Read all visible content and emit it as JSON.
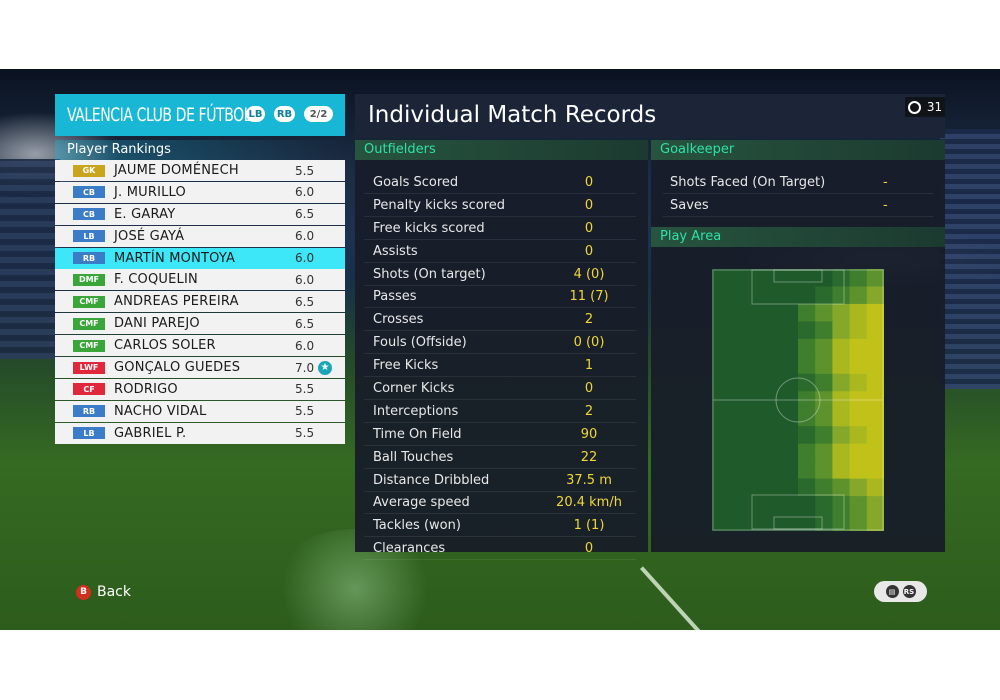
{
  "team": {
    "name": "VALENCIA CLUB DE FÚTBOL",
    "btn_lb": "LB",
    "btn_rb": "RB",
    "page": "2/2"
  },
  "rankings_label": "Player Rankings",
  "players": [
    {
      "pos": "GK",
      "pos_color": "#c8a51c",
      "name": "JAUME DOMÉNECH",
      "rating": "5.5"
    },
    {
      "pos": "CB",
      "pos_color": "#3a7cc8",
      "name": "J. MURILLO",
      "rating": "6.0"
    },
    {
      "pos": "CB",
      "pos_color": "#3a7cc8",
      "name": "E. GARAY",
      "rating": "6.5"
    },
    {
      "pos": "LB",
      "pos_color": "#3a7cc8",
      "name": "JOSÉ GAYÁ",
      "rating": "6.0"
    },
    {
      "pos": "RB",
      "pos_color": "#3a7cc8",
      "name": "MARTÍN MONTOYA",
      "rating": "6.0",
      "selected": true
    },
    {
      "pos": "DMF",
      "pos_color": "#3aa63a",
      "name": "F. COQUELIN",
      "rating": "6.0"
    },
    {
      "pos": "CMF",
      "pos_color": "#3aa63a",
      "name": "ANDREAS PEREIRA",
      "rating": "6.5"
    },
    {
      "pos": "CMF",
      "pos_color": "#3aa63a",
      "name": "DANI PAREJO",
      "rating": "6.5"
    },
    {
      "pos": "CMF",
      "pos_color": "#3aa63a",
      "name": "CARLOS SOLER",
      "rating": "6.0"
    },
    {
      "pos": "LWF",
      "pos_color": "#e0283c",
      "name": "GONÇALO GUEDES",
      "rating": "7.0",
      "star": true
    },
    {
      "pos": "CF",
      "pos_color": "#e0283c",
      "name": "RODRIGO",
      "rating": "5.5"
    },
    {
      "pos": "RB",
      "pos_color": "#3a7cc8",
      "name": "NACHO VIDAL",
      "rating": "5.5"
    },
    {
      "pos": "LB",
      "pos_color": "#3a7cc8",
      "name": "GABRIEL P.",
      "rating": "5.5"
    }
  ],
  "title": "Individual Match Records",
  "timer": "31",
  "outfielders_label": "Outfielders",
  "stats": [
    {
      "label": "Goals Scored",
      "value": "0"
    },
    {
      "label": "Penalty kicks scored",
      "value": "0"
    },
    {
      "label": "Free kicks scored",
      "value": "0"
    },
    {
      "label": "Assists",
      "value": "0"
    },
    {
      "label": "Shots (On target)",
      "value": "4 (0)"
    },
    {
      "label": "Passes",
      "value": "11 (7)"
    },
    {
      "label": "Crosses",
      "value": "2"
    },
    {
      "label": "Fouls (Offside)",
      "value": "0 (0)"
    },
    {
      "label": "Free Kicks",
      "value": "1"
    },
    {
      "label": "Corner Kicks",
      "value": "0"
    },
    {
      "label": "Interceptions",
      "value": "2"
    },
    {
      "label": "Time On Field",
      "value": "90"
    },
    {
      "label": "Ball Touches",
      "value": "22"
    },
    {
      "label": "Distance Dribbled",
      "value": "37.5 m"
    },
    {
      "label": "Average speed",
      "value": "20.4 km/h"
    },
    {
      "label": "Tackles (won)",
      "value": "1 (1)"
    },
    {
      "label": "Clearances",
      "value": "0"
    }
  ],
  "goalkeeper_label": "Goalkeeper",
  "gk_stats": [
    {
      "label": "Shots Faced (On Target)",
      "value": "-"
    },
    {
      "label": "Saves",
      "value": "-"
    }
  ],
  "play_area_label": "Play Area",
  "back_label": "Back",
  "back_icon": "B",
  "pill_icons": [
    "chat-icon",
    "rs-icon"
  ],
  "colors": {
    "accent": "#19b7d6",
    "selected": "#3ee7f8",
    "value": "#f0d63a",
    "section": "#2fe0a9"
  }
}
